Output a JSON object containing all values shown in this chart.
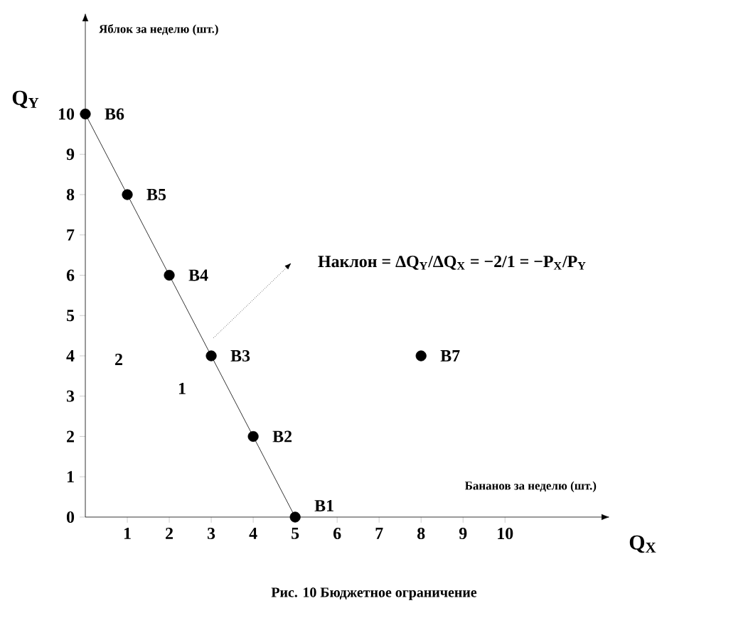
{
  "chart_data": {
    "type": "line",
    "xlabel": "Бананов за неделю (шт.)",
    "ylabel": "Яблок за неделю (шт.)",
    "xlim": [
      0,
      12.3
    ],
    "ylim": [
      0,
      12.3
    ],
    "xticks": [
      1,
      2,
      3,
      4,
      5,
      6,
      7,
      8,
      9,
      10
    ],
    "yticks": [
      0,
      1,
      2,
      3,
      4,
      5,
      6,
      7,
      8,
      9,
      10
    ],
    "grid": false,
    "marker": "circle",
    "line_style": "solid",
    "series": [
      {
        "type": "line",
        "color": "#000000",
        "x": [
          0,
          1,
          2,
          3,
          4,
          5
        ],
        "values": [
          10,
          8,
          6,
          4,
          2,
          0
        ]
      },
      {
        "type": "scatter",
        "color": "#000000",
        "x": [
          8
        ],
        "values": [
          4
        ]
      }
    ],
    "annotations": [
      {
        "text": "B1",
        "x": 5,
        "y": 0
      },
      {
        "text": "B2",
        "x": 4,
        "y": 2
      },
      {
        "text": "B3",
        "x": 3,
        "y": 4
      },
      {
        "text": "B4",
        "x": 2,
        "y": 6
      },
      {
        "text": "B5",
        "x": 1,
        "y": 8
      },
      {
        "text": "B6",
        "x": 0,
        "y": 10
      },
      {
        "text": "B7",
        "x": 8,
        "y": 4
      },
      "Наклон = ΔQ$_{Y}$/ΔQ$_{X}$ = −2/1 = −P$_{X}$/P$_{Y}$",
      "2",
      "1",
      "Q$_{Y}$",
      "Q$_{X}$",
      "Рис. 10 Бюджетное ограничение"
    ]
  }
}
